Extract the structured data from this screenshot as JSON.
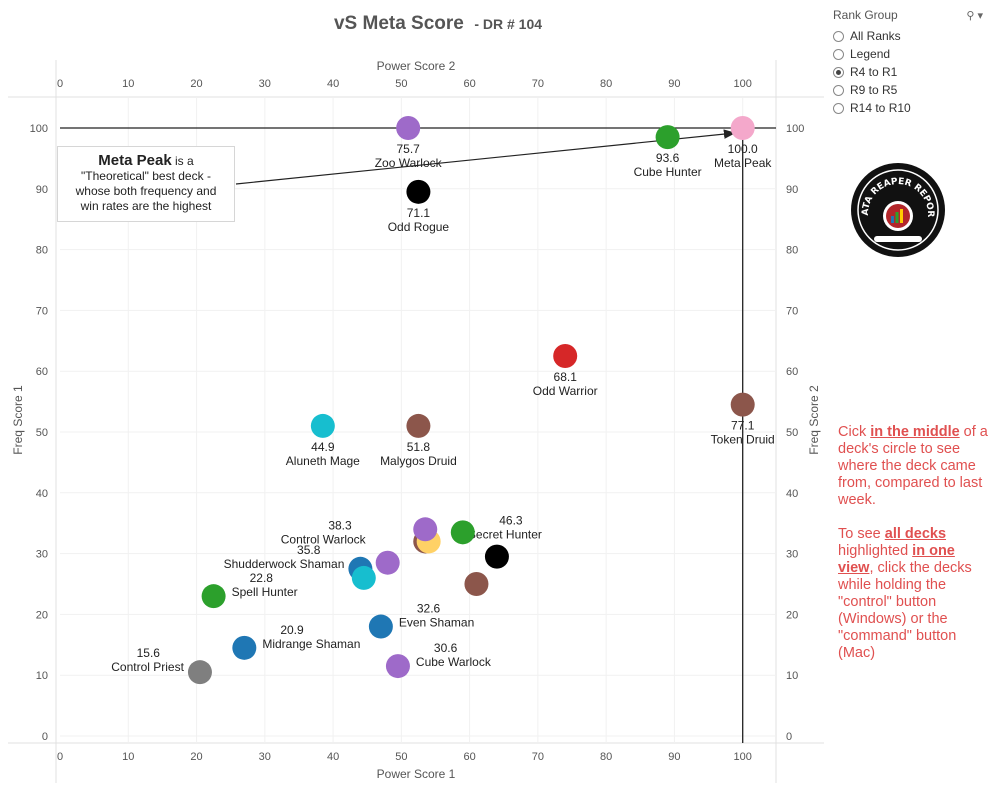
{
  "title": {
    "main": "vS Meta Score",
    "sub": "- DR # 104"
  },
  "chart_data": {
    "type": "scatter",
    "xlabel": "Power Score 1",
    "xlabel_top": "Power Score 2",
    "ylabel": "Freq Score 1",
    "ylabel_right": "Freq Score 2",
    "xlim": [
      0,
      105
    ],
    "ylim": [
      -1,
      105
    ],
    "xticks": [
      0,
      10,
      20,
      30,
      40,
      50,
      60,
      70,
      80,
      90,
      100
    ],
    "yticks": [
      0,
      10,
      20,
      30,
      40,
      50,
      60,
      70,
      80,
      90,
      100
    ],
    "grid": true,
    "reference_lines": {
      "x": 100,
      "y": 100
    },
    "points": [
      {
        "name": "Zoo Warlock",
        "score": "75.7",
        "x": 51,
        "y": 100,
        "color": "#9e6ac9",
        "label": "below"
      },
      {
        "name": "Meta Peak",
        "score": "100.0",
        "x": 100,
        "y": 100,
        "color": "#f4a8cb",
        "label": "below"
      },
      {
        "name": "Cube Hunter",
        "score": "93.6",
        "x": 89,
        "y": 98.5,
        "color": "#2ca02c",
        "label": "below"
      },
      {
        "name": "Odd Rogue",
        "score": "71.1",
        "x": 52.5,
        "y": 89.5,
        "color": "#000000",
        "label": "below"
      },
      {
        "name": "Odd Warrior",
        "score": "68.1",
        "x": 74,
        "y": 62.5,
        "color": "#d62728",
        "label": "below"
      },
      {
        "name": "Token Druid",
        "score": "77.1",
        "x": 100,
        "y": 54.5,
        "color": "#8c564b",
        "label": "below"
      },
      {
        "name": "Aluneth Mage",
        "score": "44.9",
        "x": 38.5,
        "y": 51,
        "color": "#17becf",
        "label": "below"
      },
      {
        "name": "Malygos Druid",
        "score": "51.8",
        "x": 52.5,
        "y": 51,
        "color": "#8c564b",
        "label": "below"
      },
      {
        "name": "Secret Hunter",
        "score": "46.3",
        "x": 64,
        "y": 29.5,
        "color": "#000000",
        "label": "above-right"
      },
      {
        "name": "Control Warlock",
        "score": "38.3",
        "x": 48,
        "y": 28.5,
        "color": "#9e6ac9",
        "label": "above-left"
      },
      {
        "name": "Shudderwock Shaman",
        "score": "35.8",
        "x": 44,
        "y": 27.5,
        "color": "#1f77b4",
        "label": "left"
      },
      {
        "name": "Spell Hunter",
        "score": "22.8",
        "x": 22.5,
        "y": 23,
        "color": "#2ca02c",
        "label": "right"
      },
      {
        "name": "Even Shaman",
        "score": "32.6",
        "x": 47,
        "y": 18,
        "color": "#1f77b4",
        "label": "right"
      },
      {
        "name": "Midrange Shaman",
        "score": "20.9",
        "x": 27,
        "y": 14.5,
        "color": "#1f77b4",
        "label": "right"
      },
      {
        "name": "Cube Warlock",
        "score": "30.6",
        "x": 49.5,
        "y": 11.5,
        "color": "#9e6ac9",
        "label": "right"
      },
      {
        "name": "Control Priest",
        "score": "15.6",
        "x": 20.5,
        "y": 10.5,
        "color": "#7f7f7f",
        "label": "left"
      },
      {
        "name": "",
        "score": "",
        "x": 53.5,
        "y": 32,
        "color": "#8c564b",
        "label": "none"
      },
      {
        "name": "",
        "score": "",
        "x": 54,
        "y": 32,
        "color": "#ffd166",
        "label": "none"
      },
      {
        "name": "",
        "score": "",
        "x": 53.5,
        "y": 34,
        "color": "#9e6ac9",
        "label": "none"
      },
      {
        "name": "",
        "score": "",
        "x": 59,
        "y": 33.5,
        "color": "#2ca02c",
        "label": "none"
      },
      {
        "name": "",
        "score": "",
        "x": 44.5,
        "y": 26,
        "color": "#17becf",
        "label": "none"
      },
      {
        "name": "",
        "score": "",
        "x": 61,
        "y": 25,
        "color": "#8c564b",
        "label": "none"
      }
    ]
  },
  "filter": {
    "title": "Rank Group",
    "options": [
      "All Ranks",
      "Legend",
      "R4 to R1",
      "R9 to R5",
      "R14 to R10"
    ],
    "selected": "R4 to R1"
  },
  "callout": {
    "bold": "Meta Peak",
    "rest1": " is a",
    "line2": "\"Theoretical\" best deck -",
    "line3": "whose both frequency and",
    "line4": "win rates are the highest"
  },
  "note": {
    "p1a": "Cick ",
    "p1b": "in the middle",
    "p1c": " of a deck's circle to see where the deck came from, compared to last week.",
    "p2a": "To see ",
    "p2b": "all decks ",
    "p2c": " highlighted ",
    "p2d": "in one view",
    "p2e": ", click the decks while holding the \"control\" button (Windows) or the \"command\" button (Mac)"
  }
}
